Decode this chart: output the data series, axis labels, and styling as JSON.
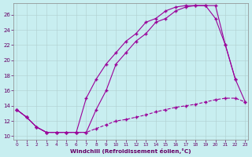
{
  "xlabel": "Windchill (Refroidissement éolien,°C)",
  "background_color": "#c8eef0",
  "line_color": "#990099",
  "xlim": [
    -0.3,
    23.3
  ],
  "ylim": [
    9.5,
    27.5
  ],
  "xticks": [
    0,
    1,
    2,
    3,
    4,
    5,
    6,
    7,
    8,
    9,
    10,
    11,
    12,
    13,
    14,
    15,
    16,
    17,
    18,
    19,
    20,
    21,
    22,
    23
  ],
  "yticks": [
    10,
    12,
    14,
    16,
    18,
    20,
    22,
    24,
    26
  ],
  "line_dashed_x": [
    0,
    1,
    2,
    3,
    4,
    5,
    6,
    7,
    8,
    9,
    10,
    11,
    12,
    13,
    14,
    15,
    16,
    17,
    18,
    19,
    20,
    21,
    22,
    23
  ],
  "line_dashed_y": [
    13.5,
    12.5,
    11.2,
    10.5,
    10.5,
    10.5,
    10.5,
    10.5,
    11.0,
    11.5,
    12.0,
    12.2,
    12.5,
    12.8,
    13.2,
    13.5,
    13.8,
    14.0,
    14.2,
    14.5,
    14.8,
    15.0,
    15.0,
    14.5
  ],
  "line_upper_x": [
    0,
    1,
    2,
    3,
    4,
    5,
    6,
    7,
    8,
    9,
    10,
    11,
    12,
    13,
    14,
    15,
    16,
    17,
    18,
    19,
    20,
    21,
    22,
    23
  ],
  "line_upper_y": [
    13.5,
    12.5,
    11.2,
    10.5,
    10.5,
    10.5,
    10.5,
    10.5,
    13.5,
    16.0,
    19.5,
    21.0,
    22.5,
    23.5,
    25.0,
    25.5,
    26.5,
    27.0,
    27.2,
    27.2,
    27.2,
    22.0,
    17.5,
    14.5
  ],
  "line_middle_x": [
    0,
    1,
    2,
    3,
    4,
    5,
    6,
    7,
    8,
    9,
    10,
    11,
    12,
    13,
    14,
    15,
    16,
    17,
    18,
    19,
    20,
    21,
    22
  ],
  "line_middle_y": [
    13.5,
    12.5,
    11.2,
    10.5,
    10.5,
    10.5,
    10.5,
    15.0,
    17.5,
    19.5,
    21.0,
    22.5,
    23.5,
    25.0,
    25.5,
    26.5,
    27.0,
    27.2,
    27.2,
    27.2,
    25.5,
    22.0,
    17.5
  ]
}
